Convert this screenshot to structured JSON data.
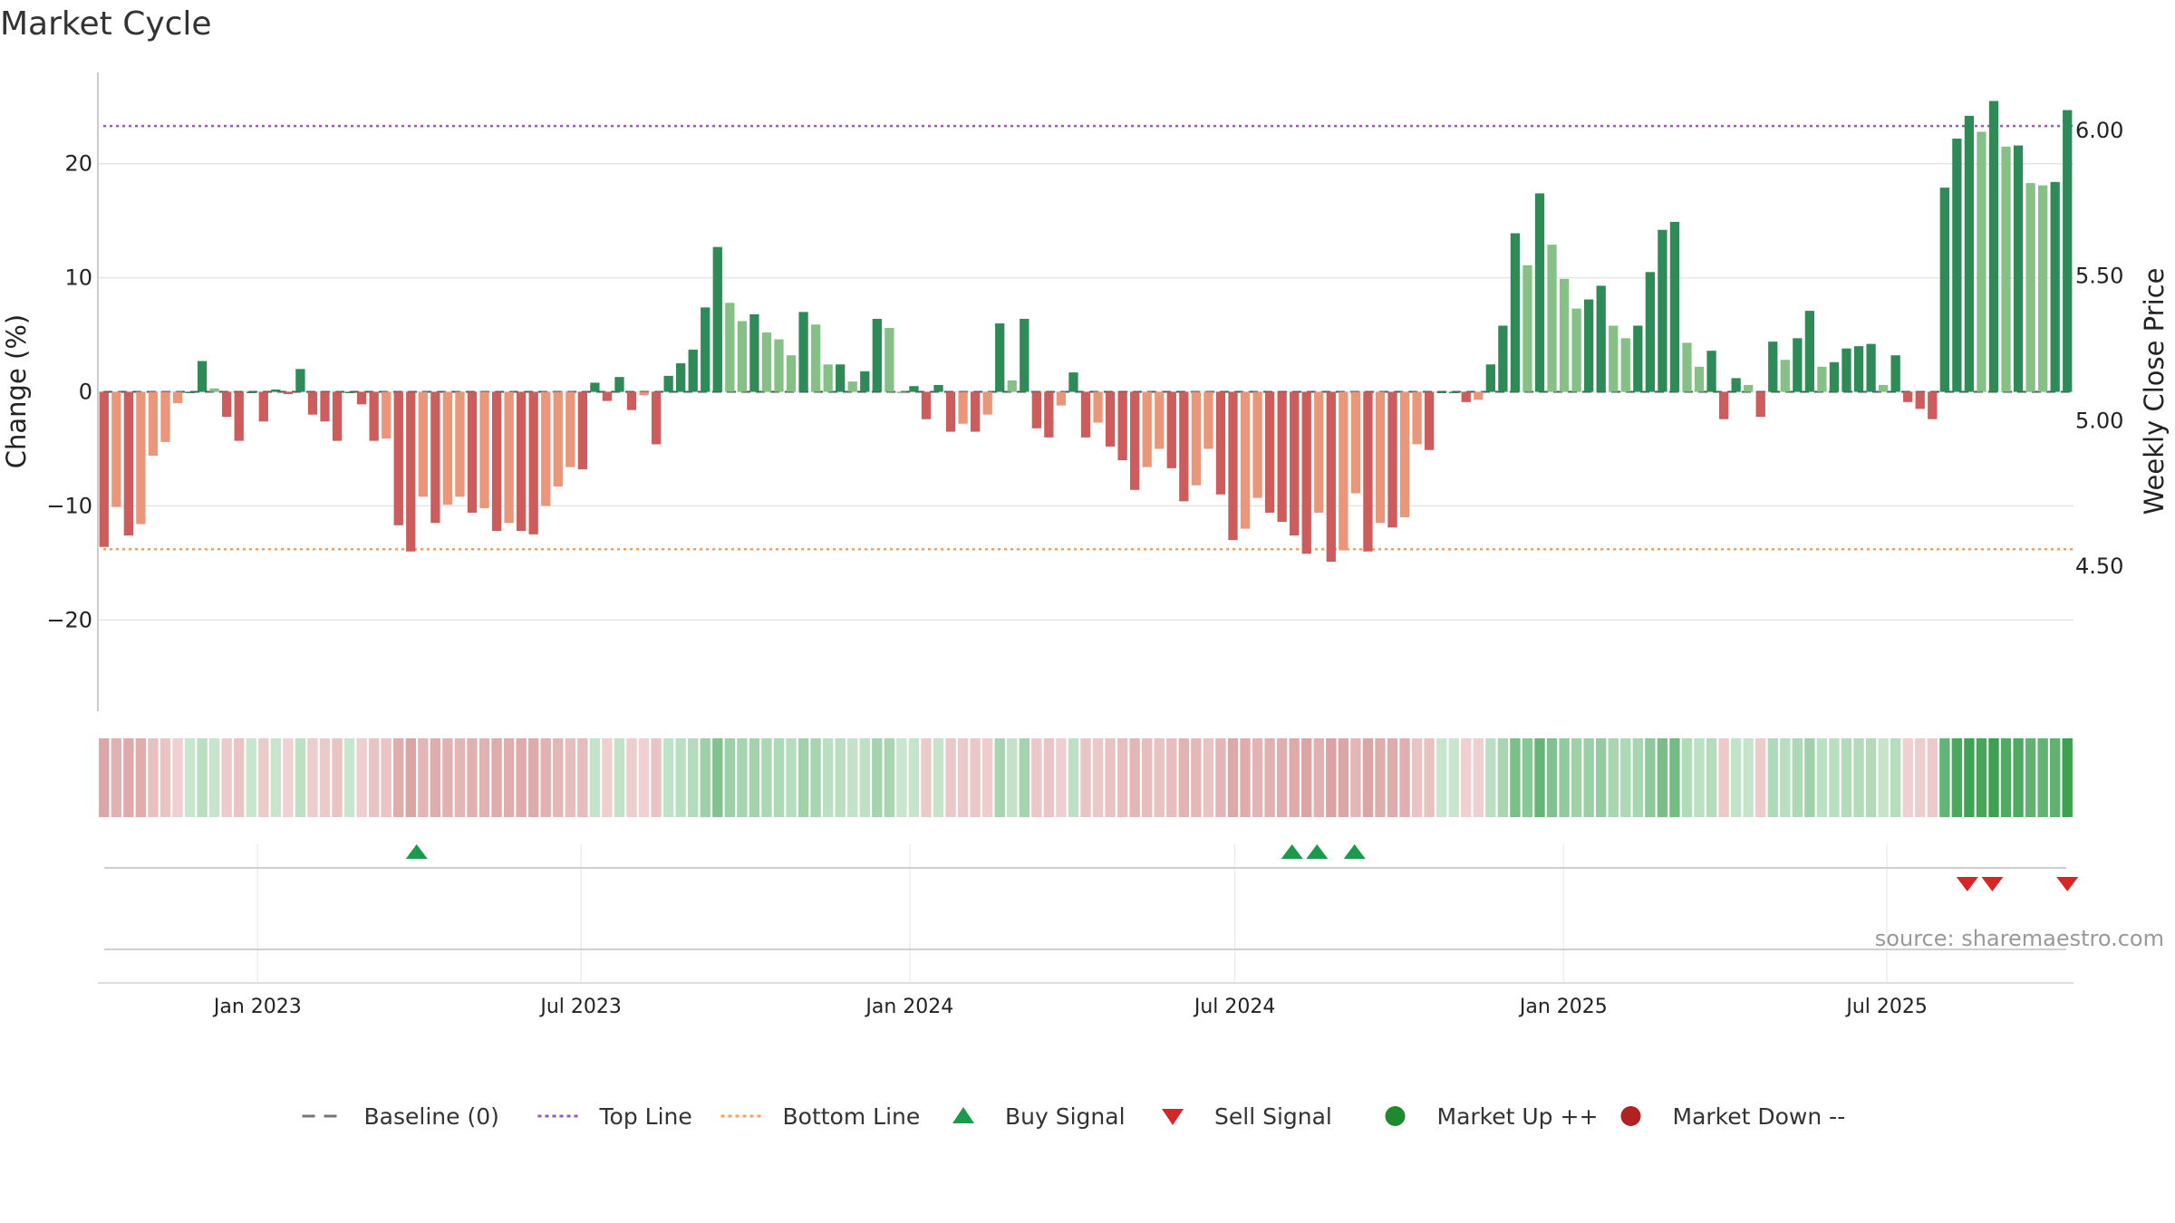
{
  "chart_data": {
    "type": "bar",
    "title": "Market Cycle",
    "ylabel": "Change (%)",
    "y2label": "Weekly Close Price",
    "ylim": [
      -28,
      28
    ],
    "y2lim": [
      4.0,
      6.2
    ],
    "yticks": [
      {
        "value": 20,
        "label": "20"
      },
      {
        "value": 10,
        "label": "10"
      },
      {
        "value": 0,
        "label": "0"
      },
      {
        "value": -10,
        "label": "−10"
      },
      {
        "value": -20,
        "label": "−20"
      }
    ],
    "y2ticks": [
      {
        "value": 6.0,
        "label": "6.00"
      },
      {
        "value": 5.5,
        "label": "5.50"
      },
      {
        "value": 5.0,
        "label": "5.00"
      },
      {
        "value": 4.5,
        "label": "4.50"
      }
    ],
    "x_start": "2022-10-07",
    "x_end": "2025-10-10",
    "xticks": [
      {
        "date": "2023-01-01",
        "label": "Jan 2023"
      },
      {
        "date": "2023-07-01",
        "label": "Jul 2023"
      },
      {
        "date": "2024-01-01",
        "label": "Jan 2024"
      },
      {
        "date": "2024-07-01",
        "label": "Jul 2024"
      },
      {
        "date": "2025-01-01",
        "label": "Jan 2025"
      },
      {
        "date": "2025-07-01",
        "label": "Jul 2025"
      }
    ],
    "top_line": 23.3,
    "bottom_line": -13.8,
    "grid": true,
    "legend_position": "bottom",
    "legend": [
      {
        "label": "Baseline (0)",
        "kind": "dash",
        "color": "#777777"
      },
      {
        "label": "Top Line",
        "kind": "dot",
        "color": "#9b59b6"
      },
      {
        "label": "Bottom Line",
        "kind": "dot",
        "color": "#f0a060"
      },
      {
        "label": "Buy Signal",
        "kind": "triangle-up",
        "color": "#1a9a4a"
      },
      {
        "label": "Sell Signal",
        "kind": "triangle-down",
        "color": "#d62728"
      },
      {
        "label": "Market Up ++",
        "kind": "circle",
        "color": "#1e8a2e"
      },
      {
        "label": "Market Down --",
        "kind": "circle",
        "color": "#b22222"
      }
    ],
    "values": [
      -13.6,
      -10.1,
      -12.6,
      -11.6,
      -5.6,
      -4.4,
      -1.0,
      0.0,
      2.7,
      0.3,
      -2.2,
      -4.3,
      0.0,
      -2.6,
      0.2,
      -0.2,
      2.0,
      -2.0,
      -2.6,
      -4.3,
      0.0,
      -1.1,
      -4.3,
      -4.1,
      -11.7,
      -14.0,
      -9.2,
      -11.5,
      -9.9,
      -9.2,
      -10.6,
      -10.2,
      -12.2,
      -11.5,
      -12.2,
      -12.5,
      -10.0,
      -8.3,
      -6.6,
      -6.8,
      0.8,
      -0.8,
      1.3,
      -1.6,
      -0.3,
      -4.6,
      1.4,
      2.5,
      3.7,
      7.4,
      12.7,
      7.8,
      6.2,
      6.8,
      5.2,
      4.6,
      3.2,
      7.0,
      5.9,
      2.4,
      2.4,
      0.9,
      1.8,
      6.4,
      5.6,
      0.0,
      0.5,
      -2.4,
      0.6,
      -3.5,
      -2.8,
      -3.5,
      -2.0,
      6.0,
      1.0,
      6.4,
      -3.2,
      -4.0,
      -1.2,
      1.7,
      -4.0,
      -2.7,
      -4.8,
      -6.0,
      -8.6,
      -6.6,
      -5.0,
      -6.7,
      -9.6,
      -8.2,
      -5.0,
      -9.0,
      -13.0,
      -12.0,
      -9.3,
      -10.6,
      -11.4,
      -12.6,
      -14.2,
      -10.6,
      -14.9,
      -13.9,
      -8.9,
      -14.0,
      -11.5,
      -11.9,
      -11.0,
      -4.6,
      -5.1,
      0.0,
      0.0,
      -0.9,
      -0.7,
      2.4,
      5.8,
      13.9,
      11.1,
      17.4,
      12.9,
      9.9,
      7.3,
      8.1,
      9.3,
      5.8,
      4.7,
      5.8,
      10.5,
      14.2,
      14.9,
      4.3,
      2.2,
      3.6,
      -2.4,
      1.2,
      0.6,
      -2.2,
      4.4,
      2.8,
      4.7,
      7.1,
      2.2,
      2.6,
      3.8,
      4.0,
      4.2,
      0.6,
      3.2,
      -0.9,
      -1.5,
      -2.4,
      17.9,
      22.2,
      24.2,
      22.8,
      25.5,
      21.5,
      21.6,
      18.3,
      18.1,
      18.4,
      24.7
    ],
    "buy_signals": [
      "2023-03-31",
      "2024-08-02",
      "2024-08-16",
      "2024-09-06"
    ],
    "sell_signals": [
      "2025-08-15",
      "2025-08-29",
      "2025-10-10"
    ]
  },
  "source": "source: sharemaestro.com"
}
